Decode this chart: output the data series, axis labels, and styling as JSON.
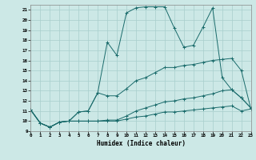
{
  "xlabel": "Humidex (Indice chaleur)",
  "bg_color": "#cce8e6",
  "grid_color": "#a8cecc",
  "line_color": "#1a6b6b",
  "xlim": [
    0,
    23
  ],
  "ylim": [
    9,
    21.5
  ],
  "xticks": [
    0,
    1,
    2,
    3,
    4,
    5,
    6,
    7,
    8,
    9,
    10,
    11,
    12,
    13,
    14,
    15,
    16,
    17,
    18,
    19,
    20,
    21,
    22,
    23
  ],
  "yticks": [
    9,
    10,
    11,
    12,
    13,
    14,
    15,
    16,
    17,
    18,
    19,
    20,
    21
  ],
  "series1_y": [
    11.1,
    9.8,
    9.4,
    9.9,
    10.0,
    10.9,
    11.0,
    12.8,
    17.8,
    16.5,
    20.7,
    21.2,
    21.3,
    21.3,
    21.3,
    19.2,
    17.3,
    17.5,
    19.3,
    21.2,
    14.3,
    13.1,
    12.3,
    11.3
  ],
  "series2_y": [
    11.1,
    9.8,
    9.4,
    9.9,
    10.0,
    10.9,
    11.0,
    12.8,
    12.5,
    12.5,
    13.2,
    14.0,
    14.3,
    14.8,
    15.3,
    15.3,
    15.5,
    15.6,
    15.8,
    16.0,
    16.1,
    16.2,
    15.0,
    11.2
  ],
  "series3_y": [
    11.1,
    9.8,
    9.4,
    9.9,
    10.0,
    10.0,
    10.0,
    10.0,
    10.1,
    10.1,
    10.5,
    11.0,
    11.3,
    11.6,
    11.9,
    12.0,
    12.2,
    12.3,
    12.5,
    12.7,
    13.0,
    13.1,
    12.3,
    11.3
  ],
  "series4_y": [
    11.1,
    9.8,
    9.4,
    9.9,
    10.0,
    10.0,
    10.0,
    10.0,
    10.0,
    10.0,
    10.2,
    10.4,
    10.5,
    10.7,
    10.9,
    10.9,
    11.0,
    11.1,
    11.2,
    11.3,
    11.4,
    11.5,
    11.0,
    11.2
  ]
}
